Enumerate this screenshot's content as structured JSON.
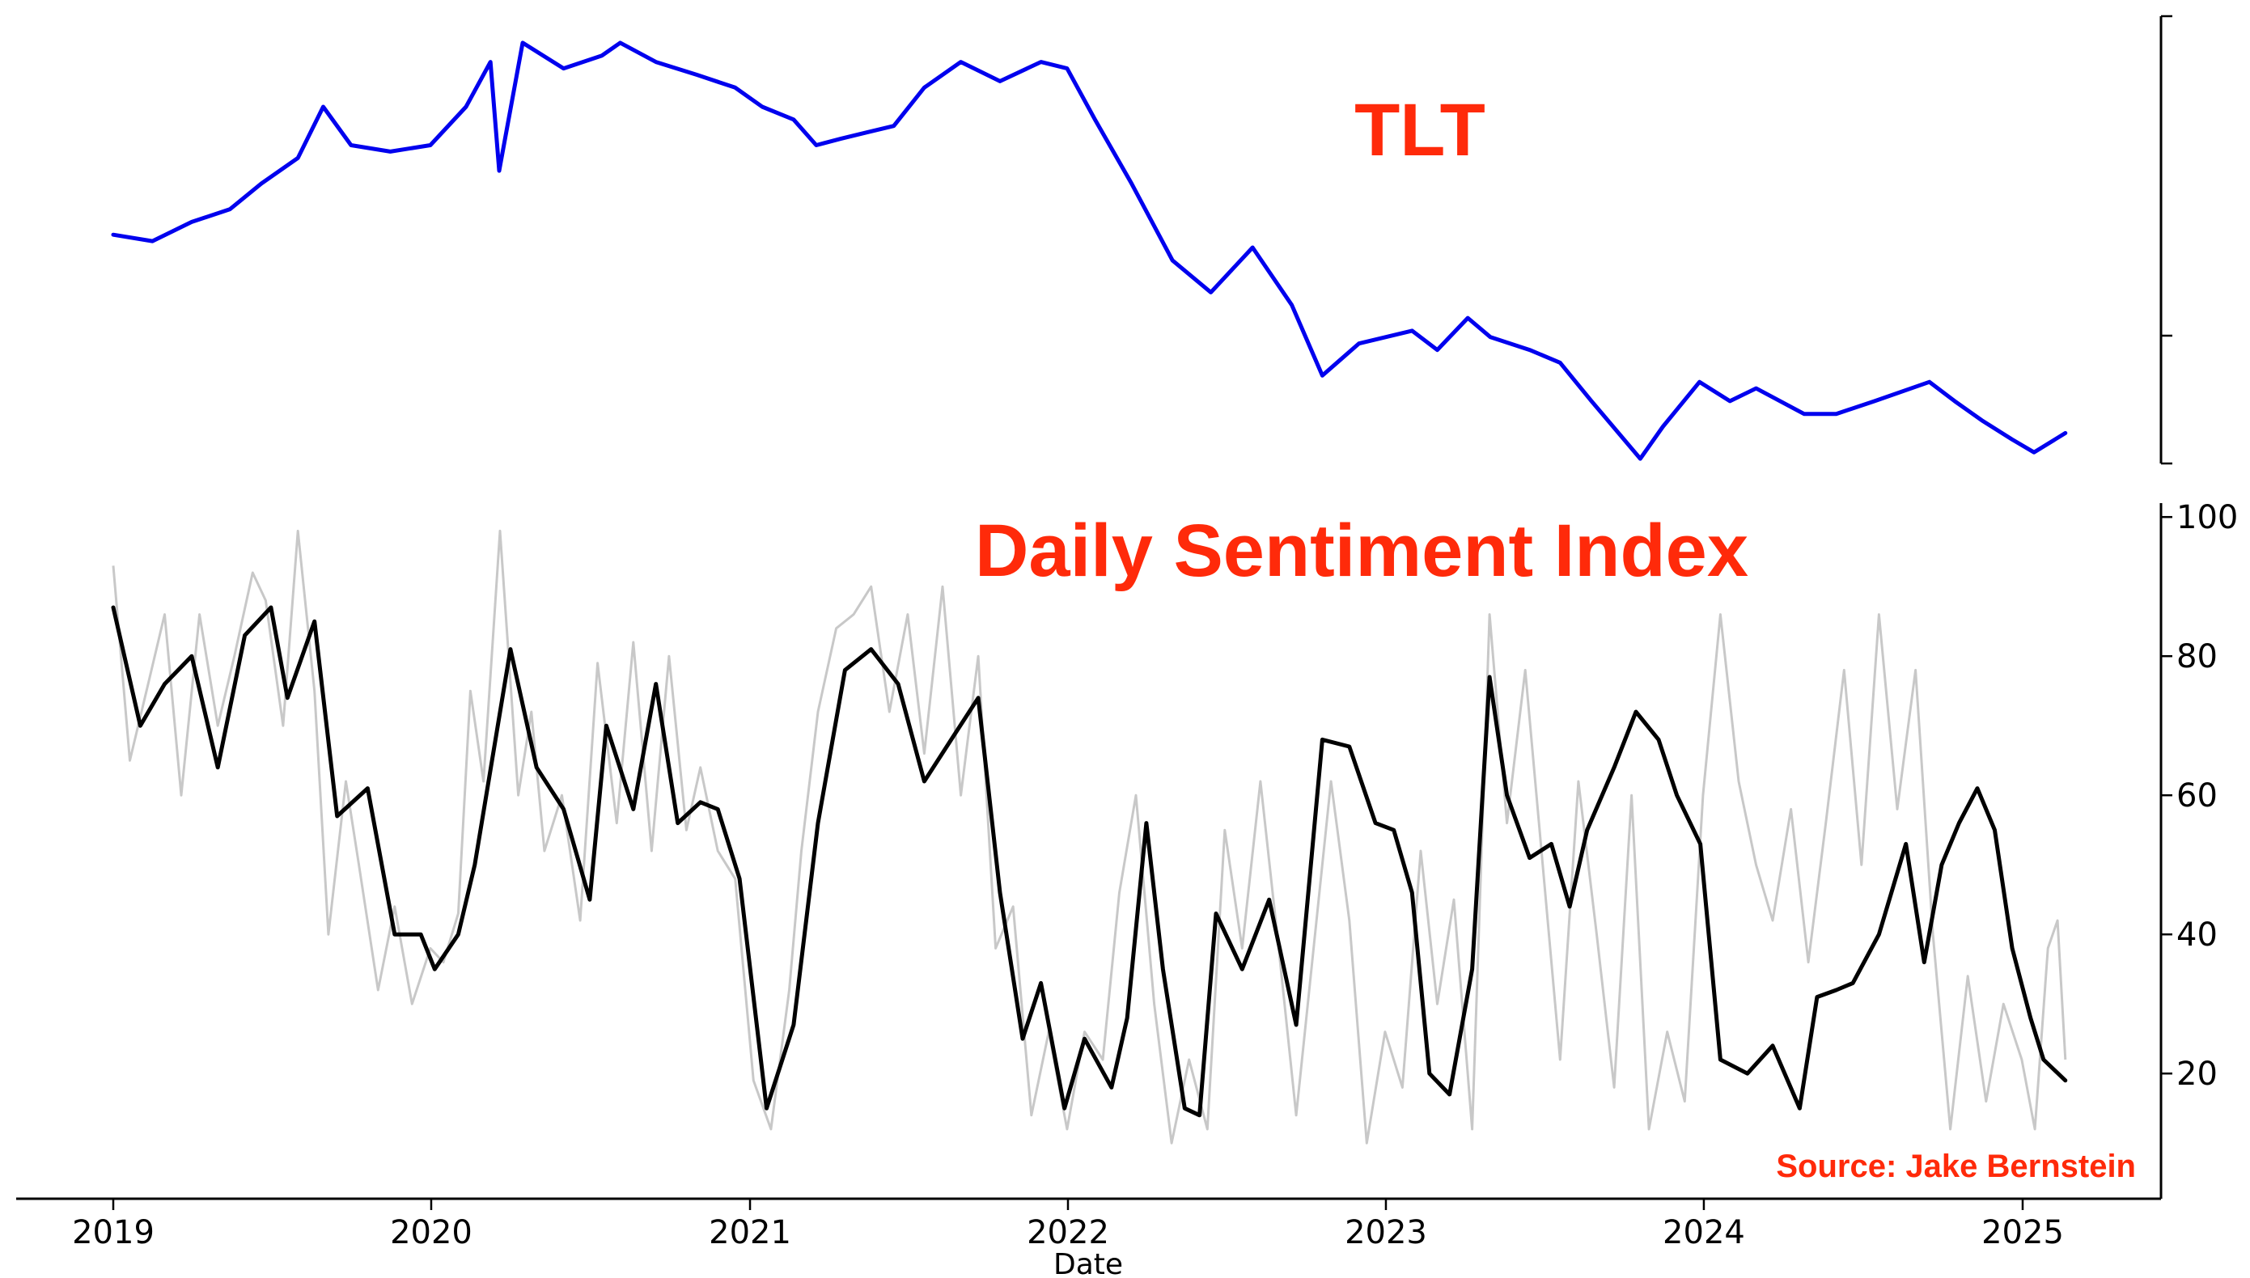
{
  "chart_data": [
    {
      "type": "line",
      "panel": "top",
      "title": "TLT",
      "title_color": "#ff2a0a",
      "y_ticks_labeled": false,
      "series": [
        {
          "color": "#0000ee",
          "x": [
            "2019-01-01",
            "2019-02-15",
            "2019-04-01",
            "2019-05-15",
            "2019-06-20",
            "2019-08-01",
            "2019-08-30",
            "2019-10-01",
            "2019-11-15",
            "2019-12-31",
            "2020-02-10",
            "2020-03-09",
            "2020-03-19",
            "2020-04-15",
            "2020-06-01",
            "2020-07-15",
            "2020-08-05",
            "2020-09-15",
            "2020-11-01",
            "2020-12-15",
            "2021-01-15",
            "2021-02-20",
            "2021-03-18",
            "2021-04-15",
            "2021-05-15",
            "2021-06-15",
            "2021-07-20",
            "2021-08-31",
            "2021-10-15",
            "2021-12-01",
            "2021-12-31",
            "2022-02-01",
            "2022-03-15",
            "2022-05-01",
            "2022-06-14",
            "2022-08-01",
            "2022-09-15",
            "2022-10-20",
            "2022-12-01",
            "2023-01-31",
            "2023-03-01",
            "2023-04-05",
            "2023-05-01",
            "2023-06-15",
            "2023-07-20",
            "2023-08-25",
            "2023-10-20",
            "2023-11-15",
            "2023-12-27",
            "2024-01-31",
            "2024-03-01",
            "2024-04-25",
            "2024-06-01",
            "2024-07-15",
            "2024-09-16",
            "2024-10-15",
            "2024-11-15",
            "2024-12-20",
            "2025-01-14",
            "2025-02-19"
          ],
          "y": [
            122,
            121,
            124,
            126,
            130,
            134,
            142,
            136,
            135,
            136,
            142,
            149,
            132,
            152,
            148,
            150,
            152,
            149,
            147,
            145,
            142,
            140,
            136,
            137,
            138,
            139,
            145,
            149,
            146,
            149,
            148,
            140,
            130,
            118,
            113,
            120,
            111,
            100,
            105,
            107,
            104,
            109,
            106,
            104,
            102,
            96,
            87,
            92,
            99,
            96,
            98,
            94,
            94,
            96,
            99,
            96,
            93,
            90,
            88,
            91
          ]
        }
      ]
    },
    {
      "type": "line",
      "panel": "bottom",
      "title": "Daily Sentiment Index",
      "title_color": "#ff2a0a",
      "xlabel": "Date",
      "x_ticks": [
        "2019",
        "2020",
        "2021",
        "2022",
        "2023",
        "2024",
        "2025"
      ],
      "y_ticks": [
        20,
        40,
        60,
        80,
        100
      ],
      "ylim": [
        2,
        102
      ],
      "annotation": "Source: Jake Bernstein",
      "annotation_color": "#ff2a0a",
      "series": [
        {
          "color": "#000000",
          "x": [
            "2019-01-01",
            "2019-02-01",
            "2019-03-01",
            "2019-04-01",
            "2019-05-01",
            "2019-06-01",
            "2019-07-01",
            "2019-07-20",
            "2019-08-20",
            "2019-09-15",
            "2019-10-20",
            "2019-11-20",
            "2019-12-20",
            "2020-01-05",
            "2020-02-01",
            "2020-02-20",
            "2020-04-01",
            "2020-05-01",
            "2020-06-01",
            "2020-07-01",
            "2020-07-20",
            "2020-08-20",
            "2020-09-15",
            "2020-10-10",
            "2020-11-05",
            "2020-11-25",
            "2020-12-20",
            "2021-01-20",
            "2021-02-20",
            "2021-03-20",
            "2021-04-20",
            "2021-05-20",
            "2021-06-20",
            "2021-07-20",
            "2021-08-20",
            "2021-09-20",
            "2021-10-15",
            "2021-11-10",
            "2021-12-01",
            "2021-12-28",
            "2022-01-20",
            "2022-02-20",
            "2022-03-10",
            "2022-04-01",
            "2022-04-20",
            "2022-05-15",
            "2022-06-01",
            "2022-06-20",
            "2022-07-20",
            "2022-08-20",
            "2022-09-20",
            "2022-10-20",
            "2022-11-20",
            "2022-12-20",
            "2023-01-10",
            "2023-01-31",
            "2023-02-20",
            "2023-03-15",
            "2023-04-10",
            "2023-04-30",
            "2023-05-20",
            "2023-06-15",
            "2023-07-10",
            "2023-07-31",
            "2023-08-20",
            "2023-09-20",
            "2023-10-15",
            "2023-11-10",
            "2023-12-01",
            "2023-12-28",
            "2024-01-20",
            "2024-02-20",
            "2024-03-20",
            "2024-04-20",
            "2024-05-10",
            "2024-06-01",
            "2024-06-20",
            "2024-07-20",
            "2024-08-20",
            "2024-09-10",
            "2024-09-30",
            "2024-10-20",
            "2024-11-10",
            "2024-11-30",
            "2024-12-20",
            "2025-01-10",
            "2025-01-25",
            "2025-02-19"
          ],
          "y": [
            87,
            70,
            76,
            80,
            64,
            83,
            87,
            74,
            85,
            57,
            61,
            40,
            40,
            35,
            40,
            50,
            81,
            64,
            58,
            45,
            70,
            58,
            76,
            56,
            59,
            58,
            48,
            15,
            27,
            56,
            78,
            81,
            76,
            62,
            68,
            74,
            46,
            25,
            33,
            15,
            25,
            18,
            28,
            56,
            35,
            15,
            14,
            43,
            35,
            45,
            27,
            68,
            67,
            56,
            55,
            46,
            20,
            17,
            35,
            77,
            60,
            51,
            53,
            44,
            55,
            64,
            72,
            68,
            60,
            53,
            22,
            20,
            24,
            15,
            31,
            32,
            33,
            40,
            53,
            36,
            50,
            56,
            61,
            55,
            38,
            28,
            22,
            19
          ]
        },
        {
          "color": "#c8c8c8",
          "x": [
            "2019-01-01",
            "2019-01-20",
            "2019-02-10",
            "2019-03-01",
            "2019-03-20",
            "2019-04-10",
            "2019-05-01",
            "2019-05-20",
            "2019-06-10",
            "2019-06-25",
            "2019-07-15",
            "2019-08-01",
            "2019-08-20",
            "2019-09-05",
            "2019-09-25",
            "2019-10-10",
            "2019-11-01",
            "2019-11-20",
            "2019-12-10",
            "2019-12-31",
            "2020-01-15",
            "2020-02-01",
            "2020-02-15",
            "2020-03-01",
            "2020-03-20",
            "2020-04-10",
            "2020-04-25",
            "2020-05-10",
            "2020-05-30",
            "2020-06-20",
            "2020-07-10",
            "2020-08-01",
            "2020-08-20",
            "2020-09-10",
            "2020-09-30",
            "2020-10-20",
            "2020-11-05",
            "2020-11-25",
            "2020-12-15",
            "2021-01-05",
            "2021-01-25",
            "2021-02-15",
            "2021-03-01",
            "2021-03-20",
            "2021-04-10",
            "2021-04-30",
            "2021-05-20",
            "2021-06-10",
            "2021-07-01",
            "2021-07-20",
            "2021-08-10",
            "2021-08-31",
            "2021-09-20",
            "2021-10-10",
            "2021-10-30",
            "2021-11-20",
            "2021-12-10",
            "2021-12-31",
            "2022-01-20",
            "2022-02-10",
            "2022-03-01",
            "2022-03-20",
            "2022-04-10",
            "2022-04-30",
            "2022-05-20",
            "2022-06-10",
            "2022-06-30",
            "2022-07-20",
            "2022-08-10",
            "2022-08-31",
            "2022-09-20",
            "2022-10-10",
            "2022-10-30",
            "2022-11-20",
            "2022-12-10",
            "2022-12-31",
            "2023-01-20",
            "2023-02-10",
            "2023-03-01",
            "2023-03-20",
            "2023-04-10",
            "2023-04-30",
            "2023-05-20",
            "2023-06-10",
            "2023-06-30",
            "2023-07-20",
            "2023-08-10",
            "2023-08-31",
            "2023-09-20",
            "2023-10-10",
            "2023-10-30",
            "2023-11-20",
            "2023-12-10",
            "2023-12-31",
            "2024-01-20",
            "2024-02-10",
            "2024-03-01",
            "2024-03-20",
            "2024-04-10",
            "2024-04-30",
            "2024-05-20",
            "2024-06-10",
            "2024-06-30",
            "2024-07-20",
            "2024-08-10",
            "2024-08-31",
            "2024-09-20",
            "2024-10-10",
            "2024-10-30",
            "2024-11-20",
            "2024-12-10",
            "2024-12-31",
            "2025-01-15",
            "2025-01-30",
            "2025-02-10",
            "2025-02-19"
          ],
          "y": [
            93,
            65,
            76,
            86,
            60,
            86,
            70,
            80,
            92,
            88,
            70,
            98,
            75,
            40,
            62,
            50,
            32,
            44,
            30,
            38,
            36,
            43,
            75,
            62,
            98,
            60,
            72,
            52,
            60,
            42,
            79,
            56,
            82,
            52,
            80,
            55,
            64,
            52,
            48,
            19,
            12,
            32,
            52,
            72,
            84,
            86,
            90,
            72,
            86,
            66,
            90,
            60,
            80,
            38,
            44,
            14,
            26,
            12,
            26,
            22,
            46,
            60,
            30,
            10,
            22,
            12,
            55,
            38,
            62,
            38,
            14,
            38,
            62,
            42,
            10,
            26,
            18,
            52,
            30,
            45,
            12,
            86,
            56,
            78,
            50,
            22,
            62,
            40,
            18,
            60,
            12,
            26,
            16,
            60,
            86,
            62,
            50,
            42,
            58,
            36,
            56,
            78,
            50,
            86,
            58,
            78,
            40,
            12,
            34,
            16,
            30,
            22,
            12,
            38,
            42,
            22
          ]
        }
      ]
    }
  ]
}
